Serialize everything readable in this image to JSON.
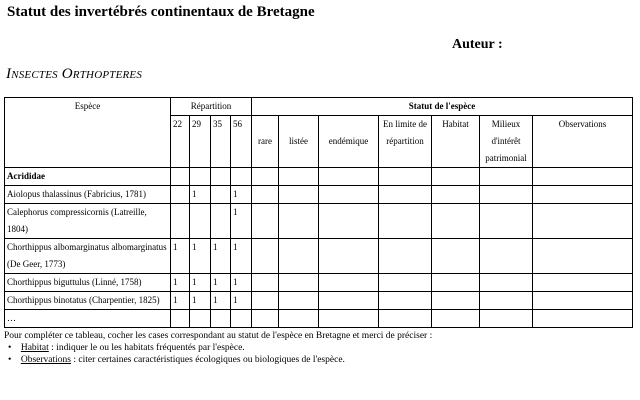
{
  "title": "Statut des invertébrés continentaux de Bretagne",
  "author_label": "Auteur :",
  "section": "Insectes Orthopteres",
  "table": {
    "headers": {
      "species": "Espèce",
      "repartition": "Répartition",
      "status": "Statut de l'espèce",
      "depts": [
        "22",
        "29",
        "35",
        "56"
      ],
      "status_cols": [
        "rare",
        "listée",
        "endémique",
        "En limite de répartition",
        "Habitat",
        "Milieux d'intérêt patrimonial",
        "Observations"
      ]
    },
    "family": "Acrididae",
    "rows": [
      {
        "species": "Aiolopus thalassinus (Fabricius, 1781)",
        "d": [
          "",
          "1",
          "",
          "1"
        ]
      },
      {
        "species": "Calephorus compressicornis (Latreille, 1804)",
        "d": [
          "",
          "",
          "",
          "1"
        ]
      },
      {
        "species": "Chorthippus albomarginatus albomarginatus (De Geer, 1773)",
        "d": [
          "1",
          "1",
          "1",
          "1"
        ]
      },
      {
        "species": "Chorthippus biguttulus (Linné, 1758)",
        "d": [
          "1",
          "1",
          "1",
          "1"
        ]
      },
      {
        "species": "Chorthippus binotatus (Charpentier, 1825)",
        "d": [
          "1",
          "1",
          "1",
          "1"
        ]
      },
      {
        "species": "…",
        "d": [
          "",
          "",
          "",
          ""
        ]
      }
    ]
  },
  "footer": {
    "intro": "Pour compléter ce tableau, cocher les cases correspondant au statut de l'espèce en Bretagne et merci de préciser :",
    "bullets": [
      {
        "term": "Habitat",
        "text": " : indiquer le ou les habitats fréquentés par l'espèce."
      },
      {
        "term": "Observations",
        "text": " : citer certaines caractéristiques écologiques ou biologiques de l'espèce."
      }
    ],
    "bullet_icon": "bullet-dot"
  }
}
